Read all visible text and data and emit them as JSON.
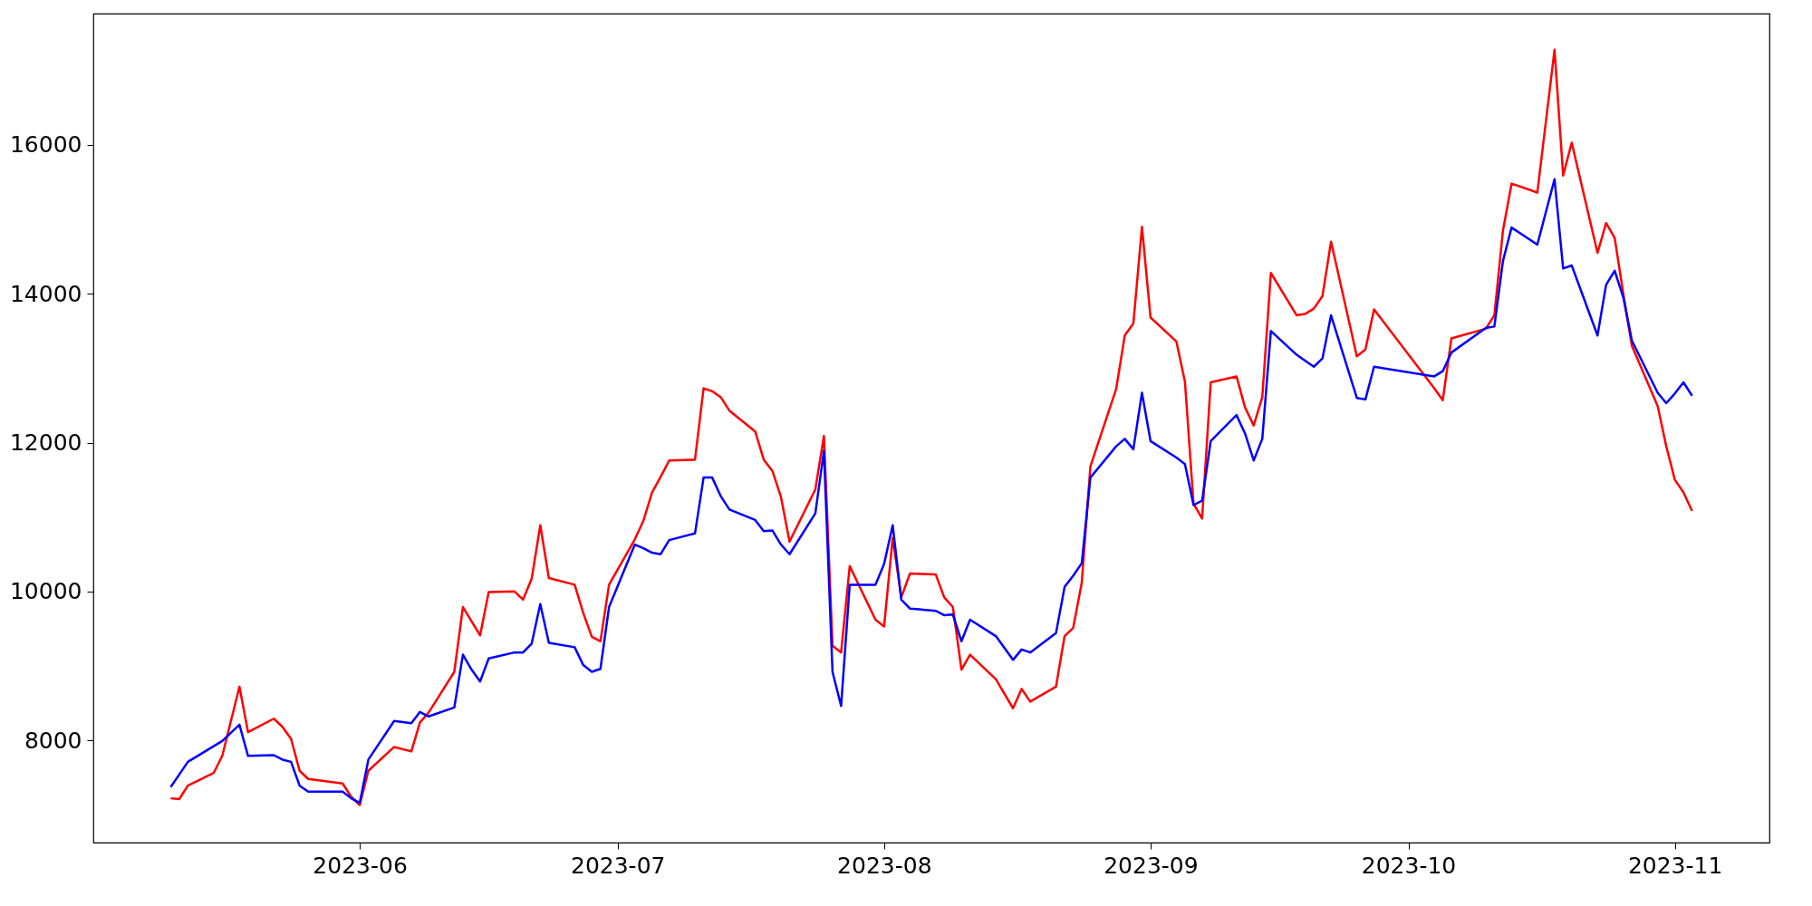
{
  "chart_data": {
    "type": "line",
    "x": [
      "2023-05-10",
      "2023-05-11",
      "2023-05-12",
      "2023-05-15",
      "2023-05-16",
      "2023-05-18",
      "2023-05-19",
      "2023-05-22",
      "2023-05-23",
      "2023-05-24",
      "2023-05-25",
      "2023-05-26",
      "2023-05-30",
      "2023-05-31",
      "2023-06-01",
      "2023-06-02",
      "2023-06-05",
      "2023-06-07",
      "2023-06-08",
      "2023-06-09",
      "2023-06-12",
      "2023-06-13",
      "2023-06-14",
      "2023-06-15",
      "2023-06-16",
      "2023-06-19",
      "2023-06-20",
      "2023-06-21",
      "2023-06-22",
      "2023-06-23",
      "2023-06-26",
      "2023-06-27",
      "2023-06-28",
      "2023-06-29",
      "2023-06-30",
      "2023-07-03",
      "2023-07-04",
      "2023-07-05",
      "2023-07-06",
      "2023-07-07",
      "2023-07-10",
      "2023-07-11",
      "2023-07-12",
      "2023-07-13",
      "2023-07-14",
      "2023-07-17",
      "2023-07-18",
      "2023-07-19",
      "2023-07-20",
      "2023-07-21",
      "2023-07-24",
      "2023-07-25",
      "2023-07-26",
      "2023-07-27",
      "2023-07-28",
      "2023-07-31",
      "2023-08-01",
      "2023-08-02",
      "2023-08-03",
      "2023-08-04",
      "2023-08-07",
      "2023-08-08",
      "2023-08-09",
      "2023-08-10",
      "2023-08-11",
      "2023-08-14",
      "2023-08-16",
      "2023-08-17",
      "2023-08-18",
      "2023-08-21",
      "2023-08-22",
      "2023-08-23",
      "2023-08-24",
      "2023-08-25",
      "2023-08-28",
      "2023-08-29",
      "2023-08-30",
      "2023-08-31",
      "2023-09-01",
      "2023-09-04",
      "2023-09-05",
      "2023-09-06",
      "2023-09-07",
      "2023-09-08",
      "2023-09-11",
      "2023-09-12",
      "2023-09-13",
      "2023-09-14",
      "2023-09-15",
      "2023-09-18",
      "2023-09-19",
      "2023-09-20",
      "2023-09-21",
      "2023-09-22",
      "2023-09-25",
      "2023-09-26",
      "2023-09-27",
      "2023-10-04",
      "2023-10-05",
      "2023-10-06",
      "2023-10-10",
      "2023-10-11",
      "2023-10-12",
      "2023-10-13",
      "2023-10-16",
      "2023-10-18",
      "2023-10-19",
      "2023-10-20",
      "2023-10-23",
      "2023-10-24",
      "2023-10-25",
      "2023-10-26",
      "2023-10-27",
      "2023-10-30",
      "2023-10-31",
      "2023-11-01",
      "2023-11-02",
      "2023-11-03"
    ],
    "series": [
      {
        "color": "#ff0000",
        "values": [
          7220,
          7210,
          7390,
          7560,
          7790,
          8720,
          8110,
          8290,
          8180,
          8020,
          7590,
          7480,
          7420,
          7240,
          7130,
          7590,
          7910,
          7850,
          8240,
          8370,
          8920,
          9790,
          9600,
          9410,
          9990,
          10000,
          9890,
          10170,
          10890,
          10180,
          10090,
          9710,
          9390,
          9330,
          10090,
          10700,
          10950,
          11330,
          11540,
          11760,
          11770,
          12730,
          12690,
          12610,
          12430,
          12150,
          11770,
          11620,
          11270,
          10670,
          11370,
          12090,
          9270,
          9180,
          10340,
          9620,
          9530,
          10720,
          9920,
          10240,
          10230,
          9920,
          9790,
          8950,
          9150,
          8820,
          8430,
          8690,
          8520,
          8720,
          9400,
          9510,
          10120,
          11680,
          12720,
          13440,
          13600,
          14900,
          13680,
          13360,
          12820,
          11180,
          10980,
          12810,
          12890,
          12470,
          12230,
          12610,
          14280,
          13710,
          13730,
          13800,
          13970,
          14700,
          13160,
          13250,
          13790,
          12730,
          12570,
          13400,
          13530,
          13710,
          14850,
          15480,
          15360,
          17280,
          15590,
          16030,
          14550,
          14950,
          14750,
          14000,
          13300,
          12490,
          11950,
          11500,
          11330,
          11080
        ]
      },
      {
        "color": "#0000ff",
        "values": [
          7370,
          7540,
          7710,
          7920,
          7990,
          8210,
          7790,
          7800,
          7740,
          7710,
          7390,
          7310,
          7310,
          7220,
          7160,
          7740,
          8260,
          8230,
          8380,
          8320,
          8440,
          9150,
          8950,
          8790,
          9100,
          9180,
          9180,
          9300,
          9830,
          9310,
          9250,
          9010,
          8920,
          8960,
          9790,
          10630,
          10580,
          10520,
          10500,
          10690,
          10780,
          11530,
          11530,
          11280,
          11100,
          10960,
          10810,
          10820,
          10630,
          10500,
          11050,
          11890,
          8920,
          8460,
          10090,
          10090,
          10370,
          10890,
          9890,
          9770,
          9740,
          9680,
          9690,
          9330,
          9620,
          9400,
          9080,
          9220,
          9180,
          9440,
          10060,
          10210,
          10380,
          11530,
          11950,
          12050,
          11910,
          12670,
          12020,
          11800,
          11710,
          11160,
          11220,
          12020,
          12370,
          12120,
          11760,
          12050,
          13500,
          13180,
          13100,
          13020,
          13130,
          13710,
          12600,
          12580,
          13020,
          12890,
          12960,
          13210,
          13540,
          13560,
          14440,
          14890,
          14660,
          15540,
          14340,
          14380,
          13440,
          14120,
          14310,
          13950,
          13370,
          12670,
          12530,
          12660,
          12810,
          12630
        ]
      }
    ],
    "xlim": [
      "2023-05-01",
      "2023-11-12"
    ],
    "xticks": [
      "2023-06",
      "2023-07",
      "2023-08",
      "2023-09",
      "2023-10",
      "2023-11"
    ],
    "ylim": [
      6625,
      17765
    ],
    "yticks": [
      8000,
      10000,
      12000,
      14000,
      16000
    ],
    "grid": false,
    "legend": false,
    "marker": "none",
    "line_style": "solid"
  }
}
